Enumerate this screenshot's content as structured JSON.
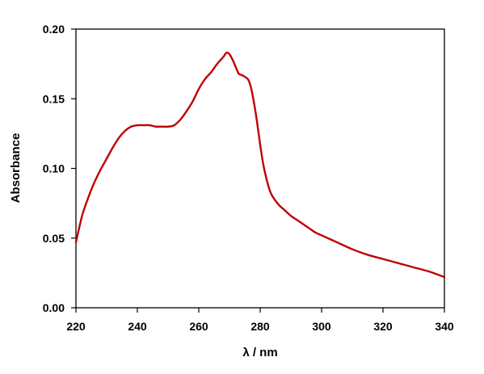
{
  "chart_data": {
    "type": "line",
    "title": "",
    "xlabel": "λ / nm",
    "ylabel": "Absorbance",
    "xlim": [
      220,
      340
    ],
    "ylim": [
      0,
      0.2
    ],
    "xticks": [
      "220",
      "240",
      "260",
      "280",
      "300",
      "320",
      "340"
    ],
    "yticks": [
      "0.00",
      "0.05",
      "0.10",
      "0.15",
      "0.20"
    ],
    "grid": false,
    "legend": "none",
    "series": [
      {
        "color": "#c00000",
        "x": [
          220,
          222,
          224,
          226,
          228,
          230,
          232,
          234,
          236,
          238,
          240,
          242,
          244,
          246,
          248,
          250,
          252,
          254,
          256,
          258,
          260,
          262,
          264,
          266,
          268,
          269,
          270,
          271,
          272,
          273,
          274,
          276,
          277,
          278,
          279,
          280,
          281,
          282,
          283,
          284,
          286,
          288,
          290,
          292,
          294,
          296,
          298,
          300,
          305,
          310,
          315,
          320,
          325,
          330,
          335,
          340
        ],
        "y": [
          0.047,
          0.066,
          0.079,
          0.09,
          0.099,
          0.107,
          0.115,
          0.122,
          0.127,
          0.13,
          0.131,
          0.131,
          0.131,
          0.13,
          0.13,
          0.13,
          0.131,
          0.135,
          0.141,
          0.148,
          0.157,
          0.164,
          0.169,
          0.175,
          0.18,
          0.183,
          0.182,
          0.178,
          0.173,
          0.168,
          0.167,
          0.164,
          0.158,
          0.147,
          0.133,
          0.117,
          0.103,
          0.093,
          0.085,
          0.08,
          0.074,
          0.07,
          0.066,
          0.063,
          0.06,
          0.057,
          0.054,
          0.052,
          0.047,
          0.042,
          0.038,
          0.035,
          0.032,
          0.029,
          0.026,
          0.022
        ]
      }
    ]
  }
}
